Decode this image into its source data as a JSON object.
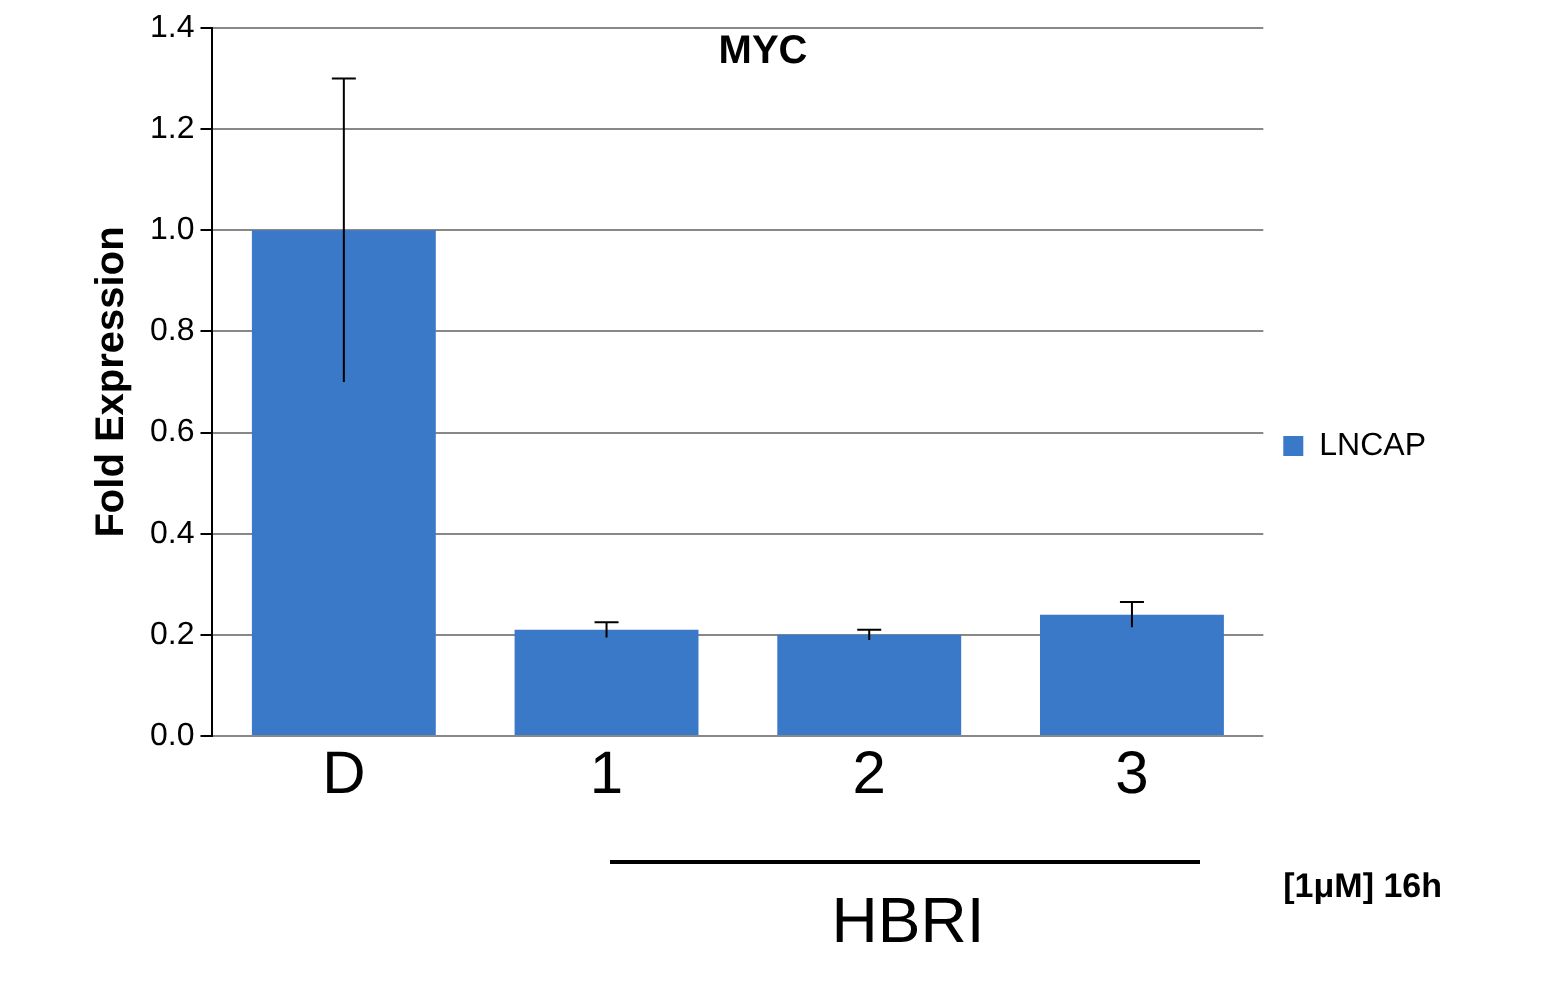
{
  "chart_data": {
    "type": "bar",
    "title": "MYC",
    "ylabel": "Fold Expression",
    "categories": [
      "D",
      "1",
      "2",
      "3"
    ],
    "series": [
      {
        "name": "LNCAP",
        "color": "#3a78c8",
        "values": [
          1.0,
          0.21,
          0.2,
          0.24
        ],
        "errors": [
          0.3,
          0.015,
          0.01,
          0.025
        ]
      }
    ],
    "ylim": [
      0,
      1.4
    ],
    "yticks": [
      {
        "value": 0,
        "label": "0.0"
      },
      {
        "value": 0.2,
        "label": "0.2"
      },
      {
        "value": 0.4,
        "label": "0.4"
      },
      {
        "value": 0.6,
        "label": "0.6"
      },
      {
        "value": 0.8,
        "label": "0.8"
      },
      {
        "value": 1,
        "label": "1.0"
      },
      {
        "value": 1.2,
        "label": "1.2"
      },
      {
        "value": 1.4,
        "label": "1.4"
      }
    ],
    "grid": "y",
    "legend": "right",
    "annotations": [
      "[1μM] 16h",
      "HBRI"
    ]
  }
}
